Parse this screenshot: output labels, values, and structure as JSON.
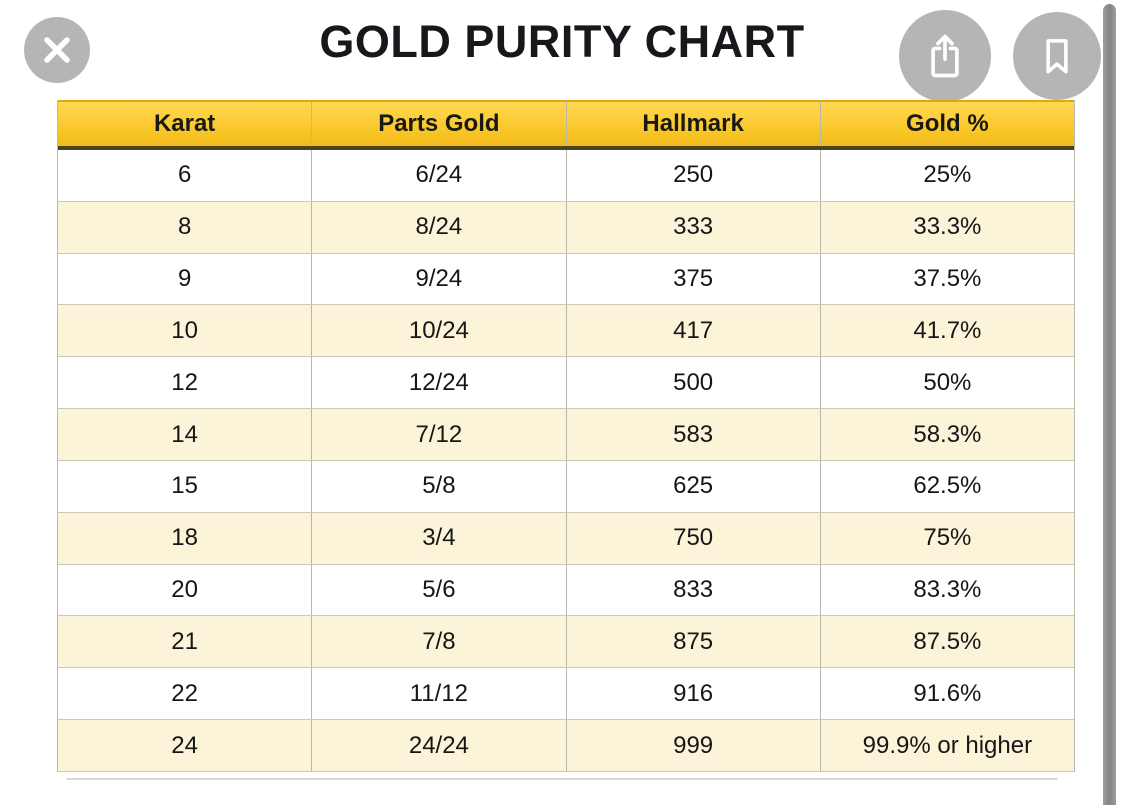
{
  "title": "GOLD PURITY CHART",
  "toolbar": {
    "close_icon": "close-x",
    "share_icon": "share-up-arrow",
    "bookmark_icon": "bookmark-ribbon"
  },
  "table": {
    "columns": [
      "Karat",
      "Parts Gold",
      "Hallmark",
      "Gold %"
    ],
    "rows": [
      [
        "6",
        "6/24",
        "250",
        "25%"
      ],
      [
        "8",
        "8/24",
        "333",
        "33.3%"
      ],
      [
        "9",
        "9/24",
        "375",
        "37.5%"
      ],
      [
        "10",
        "10/24",
        "417",
        "41.7%"
      ],
      [
        "12",
        "12/24",
        "500",
        "50%"
      ],
      [
        "14",
        "7/12",
        "583",
        "58.3%"
      ],
      [
        "15",
        "5/8",
        "625",
        "62.5%"
      ],
      [
        "18",
        "3/4",
        "750",
        "75%"
      ],
      [
        "20",
        "5/6",
        "833",
        "83.3%"
      ],
      [
        "21",
        "7/8",
        "875",
        "87.5%"
      ],
      [
        "22",
        "11/12",
        "916",
        "91.6%"
      ],
      [
        "24",
        "24/24",
        "999",
        "99.9% or higher"
      ]
    ]
  },
  "colors": {
    "header_gradient_top": "#ffd852",
    "header_gradient_bottom": "#f2ba1a",
    "header_underline": "#4a431c",
    "row_alt_cream": "#fbf4d9",
    "row_divider": "#ccc8b6",
    "button_circle_gray": "#b5b5b5",
    "scrollbar_gray": "#8f8f8f",
    "text_black": "#161616"
  }
}
